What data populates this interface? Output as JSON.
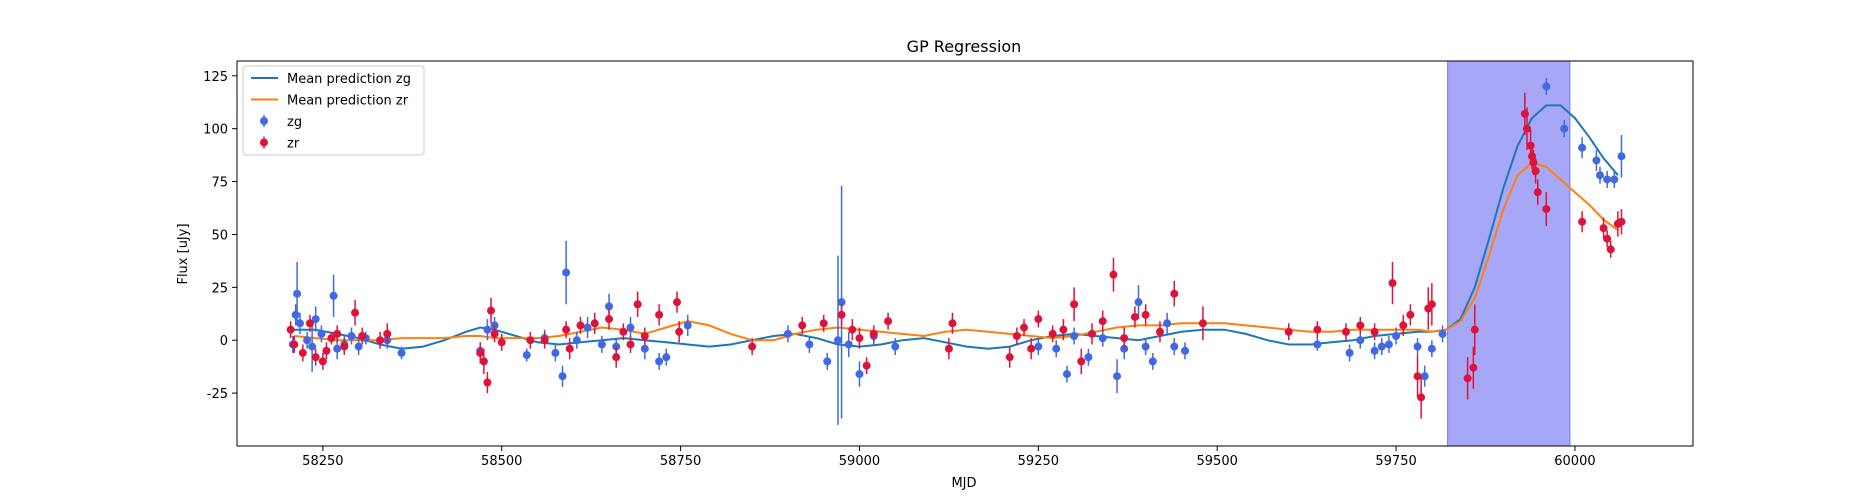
{
  "chart_data": {
    "type": "scatter",
    "title": "GP Regression",
    "xlabel": "MJD",
    "ylabel": "Flux [uJy]",
    "xlim": [
      58130,
      60165
    ],
    "ylim": [
      -50,
      132
    ],
    "xticks": [
      58250,
      58500,
      58750,
      59000,
      59250,
      59500,
      59750,
      60000
    ],
    "yticks": [
      -25,
      0,
      25,
      50,
      75,
      100,
      125
    ],
    "highlight_span": {
      "x0": 59822,
      "x1": 59993,
      "color": "#a6a8f7"
    },
    "legend": {
      "placement": "top-left",
      "entries": [
        "Mean prediction zg",
        "Mean prediction zr",
        "zg",
        "zr"
      ]
    },
    "series": [
      {
        "name": "Mean prediction zg",
        "kind": "line",
        "color": "#1f77b4",
        "x": [
          58210,
          58240,
          58270,
          58300,
          58330,
          58360,
          58390,
          58420,
          58450,
          58470,
          58490,
          58520,
          58550,
          58580,
          58610,
          58640,
          58670,
          58700,
          58730,
          58760,
          58790,
          58820,
          58850,
          58880,
          58910,
          58940,
          58970,
          59000,
          59030,
          59060,
          59090,
          59120,
          59150,
          59180,
          59210,
          59240,
          59270,
          59300,
          59330,
          59360,
          59390,
          59420,
          59450,
          59480,
          59510,
          59540,
          59570,
          59600,
          59630,
          59660,
          59690,
          59720,
          59750,
          59780,
          59800,
          59820,
          59840,
          59860,
          59880,
          59900,
          59920,
          59940,
          59960,
          59980,
          60000,
          60020,
          60040,
          60060
        ],
        "y": [
          5,
          5,
          3,
          1,
          -2,
          -4,
          -3,
          0,
          4,
          6,
          5,
          2,
          -1,
          -2,
          -1,
          0,
          1,
          0,
          -1,
          -2,
          -3,
          -2,
          0,
          2,
          3,
          1,
          -2,
          -3,
          -2,
          0,
          1,
          -1,
          -3,
          -4,
          -3,
          0,
          2,
          3,
          2,
          1,
          0,
          2,
          4,
          5,
          5,
          3,
          0,
          -2,
          -2,
          -1,
          0,
          2,
          3,
          4,
          4,
          5,
          10,
          25,
          48,
          72,
          92,
          105,
          111,
          111,
          105,
          96,
          86,
          78
        ]
      },
      {
        "name": "Mean prediction zr",
        "kind": "line",
        "color": "#ff7f0e",
        "x": [
          58210,
          58240,
          58270,
          58300,
          58330,
          58360,
          58390,
          58420,
          58450,
          58470,
          58490,
          58520,
          58550,
          58580,
          58610,
          58640,
          58670,
          58700,
          58730,
          58760,
          58790,
          58820,
          58850,
          58880,
          58910,
          58940,
          58970,
          59000,
          59030,
          59060,
          59090,
          59120,
          59150,
          59180,
          59210,
          59240,
          59270,
          59300,
          59330,
          59360,
          59390,
          59420,
          59450,
          59480,
          59510,
          59540,
          59570,
          59600,
          59630,
          59660,
          59690,
          59720,
          59750,
          59780,
          59800,
          59820,
          59840,
          59860,
          59880,
          59900,
          59920,
          59940,
          59960,
          59980,
          60000,
          60020,
          60040,
          60060
        ],
        "y": [
          2,
          1,
          0,
          0,
          0,
          1,
          1,
          1,
          2,
          2,
          1,
          1,
          1,
          2,
          4,
          6,
          5,
          3,
          6,
          9,
          7,
          3,
          0,
          0,
          3,
          5,
          6,
          5,
          4,
          3,
          2,
          4,
          5,
          4,
          3,
          2,
          1,
          2,
          4,
          6,
          7,
          7,
          8,
          8,
          8,
          7,
          6,
          5,
          4,
          4,
          5,
          5,
          5,
          5,
          4,
          5,
          9,
          20,
          40,
          62,
          78,
          84,
          82,
          76,
          70,
          64,
          57,
          52
        ]
      },
      {
        "name": "zg",
        "kind": "errorbar",
        "color": "#4169e1",
        "points": [
          [
            58208,
            -2,
            4
          ],
          [
            58212,
            12,
            5
          ],
          [
            58214,
            22,
            15
          ],
          [
            58218,
            8,
            5
          ],
          [
            58228,
            0,
            4
          ],
          [
            58235,
            -3,
            12
          ],
          [
            58240,
            10,
            6
          ],
          [
            58248,
            3,
            4
          ],
          [
            58265,
            21,
            10
          ],
          [
            58270,
            -4,
            5
          ],
          [
            58280,
            -2,
            4
          ],
          [
            58290,
            2,
            4
          ],
          [
            58300,
            -3,
            4
          ],
          [
            58310,
            1,
            3
          ],
          [
            58340,
            0,
            4
          ],
          [
            58360,
            -6,
            3
          ],
          [
            58470,
            -5,
            4
          ],
          [
            58480,
            5,
            5
          ],
          [
            58490,
            7,
            4
          ],
          [
            58535,
            -7,
            3
          ],
          [
            58560,
            1,
            4
          ],
          [
            58575,
            -6,
            4
          ],
          [
            58585,
            -17,
            5
          ],
          [
            58590,
            32,
            15
          ],
          [
            58605,
            0,
            4
          ],
          [
            58620,
            6,
            5
          ],
          [
            58640,
            -2,
            4
          ],
          [
            58650,
            16,
            6
          ],
          [
            58660,
            -3,
            4
          ],
          [
            58680,
            6,
            5
          ],
          [
            58700,
            -4,
            5
          ],
          [
            58720,
            -10,
            4
          ],
          [
            58730,
            -8,
            4
          ],
          [
            58760,
            7,
            5
          ],
          [
            58900,
            3,
            4
          ],
          [
            58930,
            -2,
            4
          ],
          [
            58955,
            -10,
            4
          ],
          [
            58970,
            0,
            40
          ],
          [
            58975,
            18,
            55
          ],
          [
            58985,
            -2,
            6
          ],
          [
            59000,
            -16,
            6
          ],
          [
            59020,
            2,
            4
          ],
          [
            59050,
            -3,
            4
          ],
          [
            59250,
            -3,
            4
          ],
          [
            59275,
            -4,
            4
          ],
          [
            59290,
            -16,
            4
          ],
          [
            59300,
            2,
            4
          ],
          [
            59320,
            -8,
            4
          ],
          [
            59340,
            1,
            4
          ],
          [
            59360,
            -17,
            8
          ],
          [
            59370,
            -4,
            5
          ],
          [
            59390,
            18,
            8
          ],
          [
            59400,
            -3,
            4
          ],
          [
            59410,
            -10,
            4
          ],
          [
            59430,
            8,
            5
          ],
          [
            59440,
            -3,
            4
          ],
          [
            59455,
            -5,
            4
          ],
          [
            59640,
            -2,
            3
          ],
          [
            59685,
            -6,
            4
          ],
          [
            59700,
            0,
            4
          ],
          [
            59720,
            -5,
            4
          ],
          [
            59730,
            -3,
            4
          ],
          [
            59740,
            -2,
            4
          ],
          [
            59750,
            2,
            4
          ],
          [
            59780,
            -3,
            4
          ],
          [
            59790,
            -17,
            5
          ],
          [
            59800,
            -4,
            4
          ],
          [
            59815,
            3,
            4
          ],
          [
            59960,
            120,
            4
          ],
          [
            59985,
            100,
            4
          ],
          [
            60010,
            91,
            5
          ],
          [
            60030,
            85,
            5
          ],
          [
            60035,
            78,
            4
          ],
          [
            60045,
            76,
            4
          ],
          [
            60055,
            76,
            4
          ],
          [
            60065,
            87,
            10
          ]
        ]
      },
      {
        "name": "zr",
        "kind": "errorbar",
        "color": "#dc143c",
        "points": [
          [
            58205,
            5,
            4
          ],
          [
            58210,
            -2,
            4
          ],
          [
            58222,
            -6,
            4
          ],
          [
            58232,
            8,
            4
          ],
          [
            58240,
            -8,
            4
          ],
          [
            58250,
            -10,
            4
          ],
          [
            58255,
            -5,
            4
          ],
          [
            58262,
            1,
            3
          ],
          [
            58270,
            3,
            4
          ],
          [
            58280,
            -3,
            4
          ],
          [
            58295,
            13,
            6
          ],
          [
            58305,
            2,
            4
          ],
          [
            58330,
            0,
            4
          ],
          [
            58340,
            3,
            5
          ],
          [
            58470,
            -6,
            5
          ],
          [
            58475,
            -10,
            6
          ],
          [
            58480,
            -20,
            5
          ],
          [
            58485,
            14,
            6
          ],
          [
            58490,
            3,
            4
          ],
          [
            58500,
            -1,
            4
          ],
          [
            58540,
            0,
            4
          ],
          [
            58560,
            0,
            4
          ],
          [
            58590,
            5,
            4
          ],
          [
            58595,
            -4,
            5
          ],
          [
            58610,
            7,
            4
          ],
          [
            58630,
            8,
            5
          ],
          [
            58650,
            10,
            5
          ],
          [
            58660,
            -8,
            5
          ],
          [
            58670,
            4,
            4
          ],
          [
            58680,
            -2,
            4
          ],
          [
            58690,
            17,
            6
          ],
          [
            58700,
            2,
            4
          ],
          [
            58720,
            12,
            5
          ],
          [
            58745,
            18,
            5
          ],
          [
            58748,
            4,
            5
          ],
          [
            58850,
            -3,
            4
          ],
          [
            58920,
            7,
            4
          ],
          [
            58950,
            8,
            4
          ],
          [
            58975,
            12,
            5
          ],
          [
            58990,
            5,
            5
          ],
          [
            59000,
            1,
            5
          ],
          [
            59010,
            -12,
            4
          ],
          [
            59020,
            3,
            4
          ],
          [
            59040,
            9,
            4
          ],
          [
            59125,
            -4,
            5
          ],
          [
            59130,
            8,
            5
          ],
          [
            59210,
            -8,
            5
          ],
          [
            59220,
            2,
            4
          ],
          [
            59230,
            6,
            4
          ],
          [
            59240,
            -4,
            5
          ],
          [
            59250,
            10,
            4
          ],
          [
            59270,
            3,
            4
          ],
          [
            59285,
            5,
            5
          ],
          [
            59300,
            17,
            8
          ],
          [
            59310,
            -10,
            6
          ],
          [
            59325,
            3,
            5
          ],
          [
            59340,
            9,
            5
          ],
          [
            59355,
            31,
            8
          ],
          [
            59370,
            1,
            5
          ],
          [
            59385,
            11,
            5
          ],
          [
            59400,
            12,
            5
          ],
          [
            59420,
            4,
            5
          ],
          [
            59440,
            22,
            6
          ],
          [
            59480,
            8,
            8
          ],
          [
            59600,
            4,
            4
          ],
          [
            59640,
            5,
            4
          ],
          [
            59680,
            4,
            4
          ],
          [
            59700,
            7,
            4
          ],
          [
            59720,
            4,
            4
          ],
          [
            59745,
            27,
            10
          ],
          [
            59760,
            7,
            5
          ],
          [
            59770,
            12,
            5
          ],
          [
            59780,
            -17,
            10
          ],
          [
            59785,
            -27,
            10
          ],
          [
            59795,
            15,
            10
          ],
          [
            59800,
            17,
            10
          ],
          [
            59850,
            -18,
            10
          ],
          [
            59858,
            -13,
            10
          ],
          [
            59860,
            5,
            12
          ],
          [
            59930,
            107,
            10
          ],
          [
            59933,
            100,
            10
          ],
          [
            59938,
            92,
            8
          ],
          [
            59940,
            87,
            6
          ],
          [
            59942,
            84,
            6
          ],
          [
            59945,
            80,
            6
          ],
          [
            59948,
            70,
            6
          ],
          [
            59960,
            62,
            8
          ],
          [
            60010,
            56,
            5
          ],
          [
            60040,
            53,
            5
          ],
          [
            60045,
            48,
            4
          ],
          [
            60050,
            43,
            4
          ],
          [
            60060,
            55,
            6
          ],
          [
            60065,
            56,
            6
          ]
        ]
      }
    ]
  }
}
